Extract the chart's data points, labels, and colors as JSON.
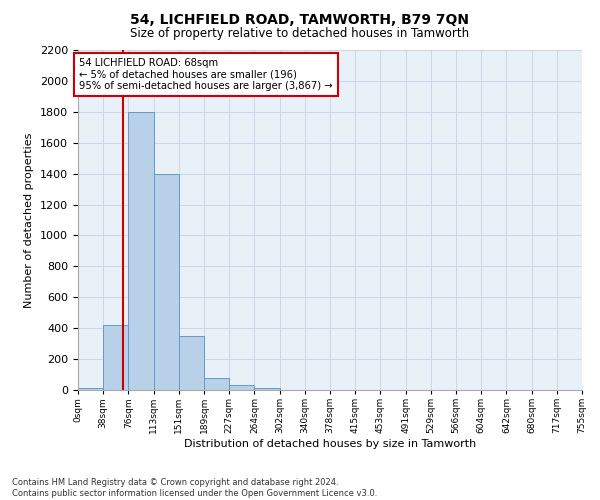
{
  "title": "54, LICHFIELD ROAD, TAMWORTH, B79 7QN",
  "subtitle": "Size of property relative to detached houses in Tamworth",
  "xlabel": "Distribution of detached houses by size in Tamworth",
  "ylabel": "Number of detached properties",
  "bin_labels": [
    "0sqm",
    "38sqm",
    "76sqm",
    "113sqm",
    "151sqm",
    "189sqm",
    "227sqm",
    "264sqm",
    "302sqm",
    "340sqm",
    "378sqm",
    "415sqm",
    "453sqm",
    "491sqm",
    "529sqm",
    "566sqm",
    "604sqm",
    "642sqm",
    "680sqm",
    "717sqm",
    "755sqm"
  ],
  "bar_heights": [
    15,
    420,
    1800,
    1395,
    350,
    80,
    32,
    15,
    0,
    0,
    0,
    0,
    0,
    0,
    0,
    0,
    0,
    0,
    0,
    0
  ],
  "bar_color": "#b8d0e8",
  "bar_edge_color": "#6699cc",
  "grid_color": "#c8d8e8",
  "bg_color": "#e8f0f8",
  "annotation_text": "54 LICHFIELD ROAD: 68sqm\n← 5% of detached houses are smaller (196)\n95% of semi-detached houses are larger (3,867) →",
  "annotation_box_color": "#ffffff",
  "annotation_box_edge": "#cc0000",
  "vline_x": 68,
  "vline_color": "#cc0000",
  "ylim": [
    0,
    2200
  ],
  "yticks": [
    0,
    200,
    400,
    600,
    800,
    1000,
    1200,
    1400,
    1600,
    1800,
    2000,
    2200
  ],
  "footnote": "Contains HM Land Registry data © Crown copyright and database right 2024.\nContains public sector information licensed under the Open Government Licence v3.0.",
  "bin_width": 38
}
